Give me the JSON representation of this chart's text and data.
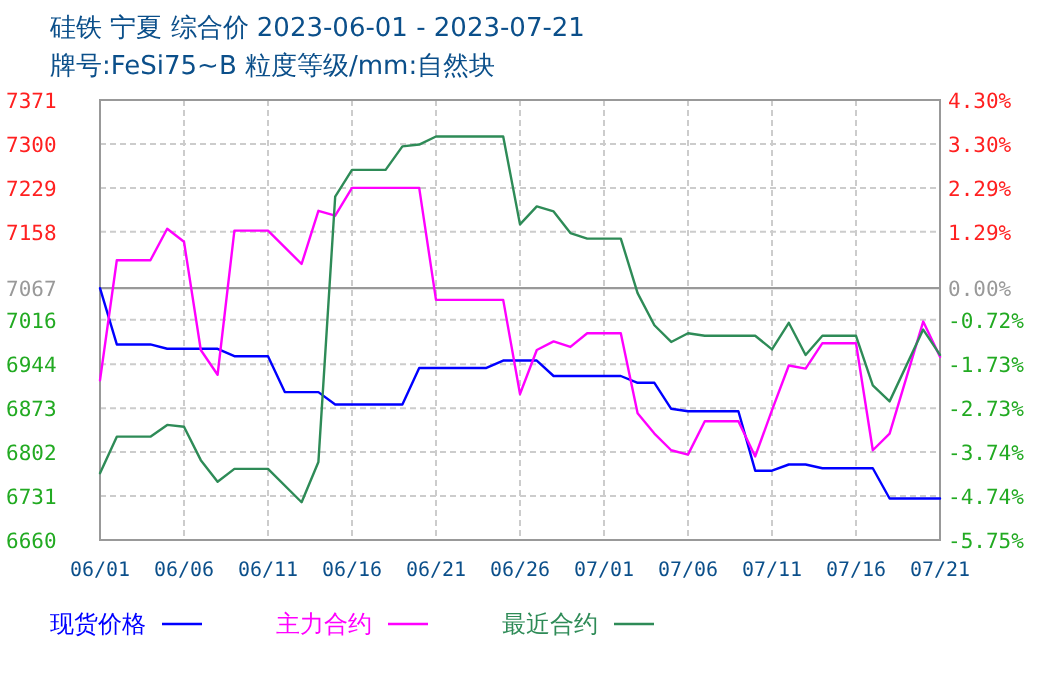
{
  "chart_data": {
    "type": "line",
    "title": "硅铁 宁夏 综合价 2023-06-01 - 2023-07-21",
    "subtitle": "牌号:FeSi75~B 粒度等级/mm:自然块",
    "xlim": [
      "2023-06-01",
      "2023-07-21"
    ],
    "xticks": [
      {
        "value": "2023-06-01",
        "label": "06/01"
      },
      {
        "value": "2023-06-06",
        "label": "06/06"
      },
      {
        "value": "2023-06-11",
        "label": "06/11"
      },
      {
        "value": "2023-06-16",
        "label": "06/16"
      },
      {
        "value": "2023-06-21",
        "label": "06/21"
      },
      {
        "value": "2023-06-26",
        "label": "06/26"
      },
      {
        "value": "2023-07-01",
        "label": "07/01"
      },
      {
        "value": "2023-07-06",
        "label": "07/06"
      },
      {
        "value": "2023-07-11",
        "label": "07/11"
      },
      {
        "value": "2023-07-16",
        "label": "07/16"
      },
      {
        "value": "2023-07-21",
        "label": "07/21"
      }
    ],
    "ylim": [
      6660,
      7371
    ],
    "yticks": [
      6660,
      6731,
      6802,
      6873,
      6944,
      7016,
      7067,
      7158,
      7229,
      7300,
      7371
    ],
    "y2lim": [
      -5.75,
      4.3
    ],
    "y2ticks": [
      {
        "value": -5.75,
        "label": "-5.75%"
      },
      {
        "value": -4.74,
        "label": "-4.74%"
      },
      {
        "value": -3.74,
        "label": "-3.74%"
      },
      {
        "value": -2.73,
        "label": "-2.73%"
      },
      {
        "value": -1.73,
        "label": "-1.73%"
      },
      {
        "value": -0.72,
        "label": "-0.72%"
      },
      {
        "value": 0,
        "label": "0.00%"
      },
      {
        "value": 1.29,
        "label": "1.29%"
      },
      {
        "value": 2.29,
        "label": "2.29%"
      },
      {
        "value": 3.3,
        "label": "3.30%"
      },
      {
        "value": 4.3,
        "label": "4.30%"
      }
    ],
    "ref_lines": [
      {
        "axis": "y",
        "value": 7067,
        "color": "#999999"
      }
    ],
    "grid": true,
    "legend": "bottom",
    "line_style": "solid",
    "marker": "none",
    "series": [
      {
        "name": "现货价格",
        "color": "#0000ff",
        "x": [
          "2023-06-01",
          "2023-06-02",
          "2023-06-04",
          "2023-06-05",
          "2023-06-08",
          "2023-06-09",
          "2023-06-11",
          "2023-06-12",
          "2023-06-14",
          "2023-06-15",
          "2023-06-19",
          "2023-06-20",
          "2023-06-24",
          "2023-06-25",
          "2023-06-27",
          "2023-06-28",
          "2023-07-02",
          "2023-07-03",
          "2023-07-04",
          "2023-07-05",
          "2023-07-06",
          "2023-07-09",
          "2023-07-10",
          "2023-07-11",
          "2023-07-12",
          "2023-07-13",
          "2023-07-14",
          "2023-07-17",
          "2023-07-18",
          "2023-07-21"
        ],
        "values": [
          7067,
          6976,
          6976,
          6969,
          6969,
          6957,
          6957,
          6899,
          6899,
          6879,
          6879,
          6938,
          6938,
          6950,
          6950,
          6925,
          6925,
          6914,
          6914,
          6872,
          6868,
          6868,
          6772,
          6772,
          6782,
          6782,
          6776,
          6776,
          6727,
          6727
        ]
      },
      {
        "name": "主力合约",
        "color": "#ff00ff",
        "x": [
          "2023-06-01",
          "2023-06-02",
          "2023-06-04",
          "2023-06-05",
          "2023-06-06",
          "2023-06-07",
          "2023-06-08",
          "2023-06-09",
          "2023-06-11",
          "2023-06-13",
          "2023-06-14",
          "2023-06-15",
          "2023-06-16",
          "2023-06-20",
          "2023-06-21",
          "2023-06-25",
          "2023-06-26",
          "2023-06-27",
          "2023-06-28",
          "2023-06-29",
          "2023-06-30",
          "2023-07-02",
          "2023-07-03",
          "2023-07-04",
          "2023-07-05",
          "2023-07-06",
          "2023-07-07",
          "2023-07-09",
          "2023-07-10",
          "2023-07-11",
          "2023-07-12",
          "2023-07-13",
          "2023-07-14",
          "2023-07-16",
          "2023-07-17",
          "2023-07-18",
          "2023-07-20",
          "2023-07-21"
        ],
        "values": [
          6918,
          7112,
          7112,
          7163,
          7142,
          6967,
          6927,
          7160,
          7160,
          7106,
          7192,
          7184,
          7229,
          7229,
          7048,
          7048,
          6896,
          6967,
          6981,
          6972,
          6994,
          6994,
          6865,
          6832,
          6805,
          6798,
          6852,
          6852,
          6795,
          6870,
          6942,
          6937,
          6978,
          6978,
          6805,
          6832,
          7013,
          6956
        ]
      },
      {
        "name": "最近合约",
        "color": "#2e8b57",
        "x": [
          "2023-06-01",
          "2023-06-02",
          "2023-06-04",
          "2023-06-05",
          "2023-06-06",
          "2023-06-07",
          "2023-06-08",
          "2023-06-09",
          "2023-06-11",
          "2023-06-13",
          "2023-06-14",
          "2023-06-15",
          "2023-06-16",
          "2023-06-18",
          "2023-06-19",
          "2023-06-20",
          "2023-06-21",
          "2023-06-25",
          "2023-06-26",
          "2023-06-27",
          "2023-06-28",
          "2023-06-29",
          "2023-06-30",
          "2023-07-02",
          "2023-07-03",
          "2023-07-04",
          "2023-07-05",
          "2023-07-06",
          "2023-07-07",
          "2023-07-10",
          "2023-07-11",
          "2023-07-12",
          "2023-07-13",
          "2023-07-14",
          "2023-07-16",
          "2023-07-17",
          "2023-07-18",
          "2023-07-20",
          "2023-07-21"
        ],
        "values": [
          6768,
          6827,
          6827,
          6846,
          6843,
          6789,
          6754,
          6775,
          6775,
          6721,
          6786,
          7215,
          7258,
          7258,
          7296,
          7299,
          7312,
          7312,
          7170,
          7199,
          7191,
          7156,
          7147,
          7147,
          7059,
          7007,
          6980,
          6994,
          6990,
          6990,
          6968,
          7011,
          6959,
          6990,
          6990,
          6910,
          6884,
          7000,
          6959
        ]
      }
    ]
  }
}
